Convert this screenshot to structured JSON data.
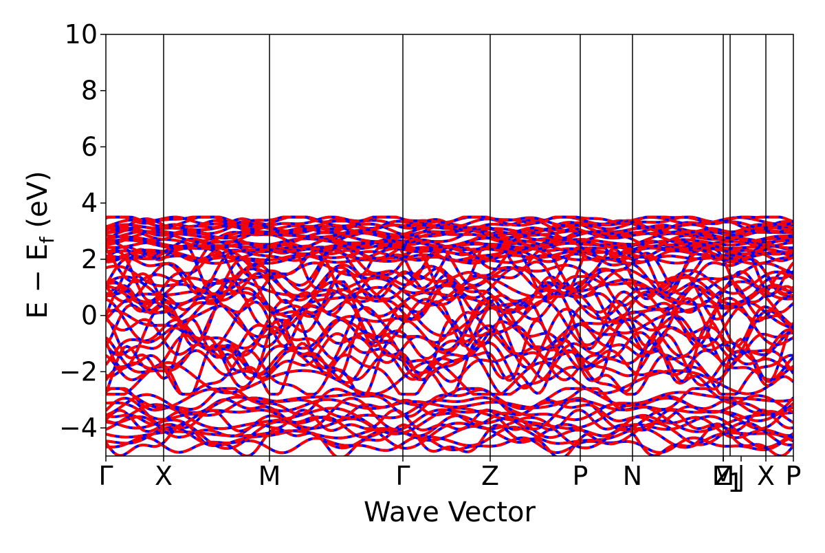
{
  "chart_data": {
    "type": "line",
    "title": "",
    "xlabel": "Wave Vector",
    "ylabel_main": "E − E",
    "ylabel_sub": "f",
    "ylabel_unit": " (eV)",
    "ylim": [
      -5,
      10
    ],
    "yticks": [
      10,
      8,
      6,
      4,
      2,
      0,
      -2,
      -4
    ],
    "ytick_labels": [
      "10",
      "8",
      "6",
      "4",
      "2",
      "0",
      "−2",
      "−4"
    ],
    "xlim": [
      0,
      1
    ],
    "kpoints": [
      {
        "label": "Γ",
        "x": 0.0
      },
      {
        "label": "X",
        "x": 0.084
      },
      {
        "label": "M",
        "x": 0.238
      },
      {
        "label": "Γ",
        "x": 0.432
      },
      {
        "label": "Z",
        "x": 0.559
      },
      {
        "label": "P",
        "x": 0.69
      },
      {
        "label": "N",
        "x": 0.766
      },
      {
        "label": "Z",
        "x": 0.898
      },
      {
        "label": "M",
        "x": 0.898
      },
      {
        "label": "1",
        "x": 0.898
      },
      {
        "label": "|",
        "x": 0.924
      },
      {
        "label": "X",
        "x": 0.96
      },
      {
        "label": "P",
        "x": 1.0
      }
    ],
    "series": [
      {
        "color": "#ff0000",
        "style": "solid"
      },
      {
        "color": "#0000ff",
        "style": "dashed"
      }
    ],
    "bands_shown": "many dispersive bands between -5 and 3.5 eV",
    "grid": false,
    "legend": "none"
  }
}
